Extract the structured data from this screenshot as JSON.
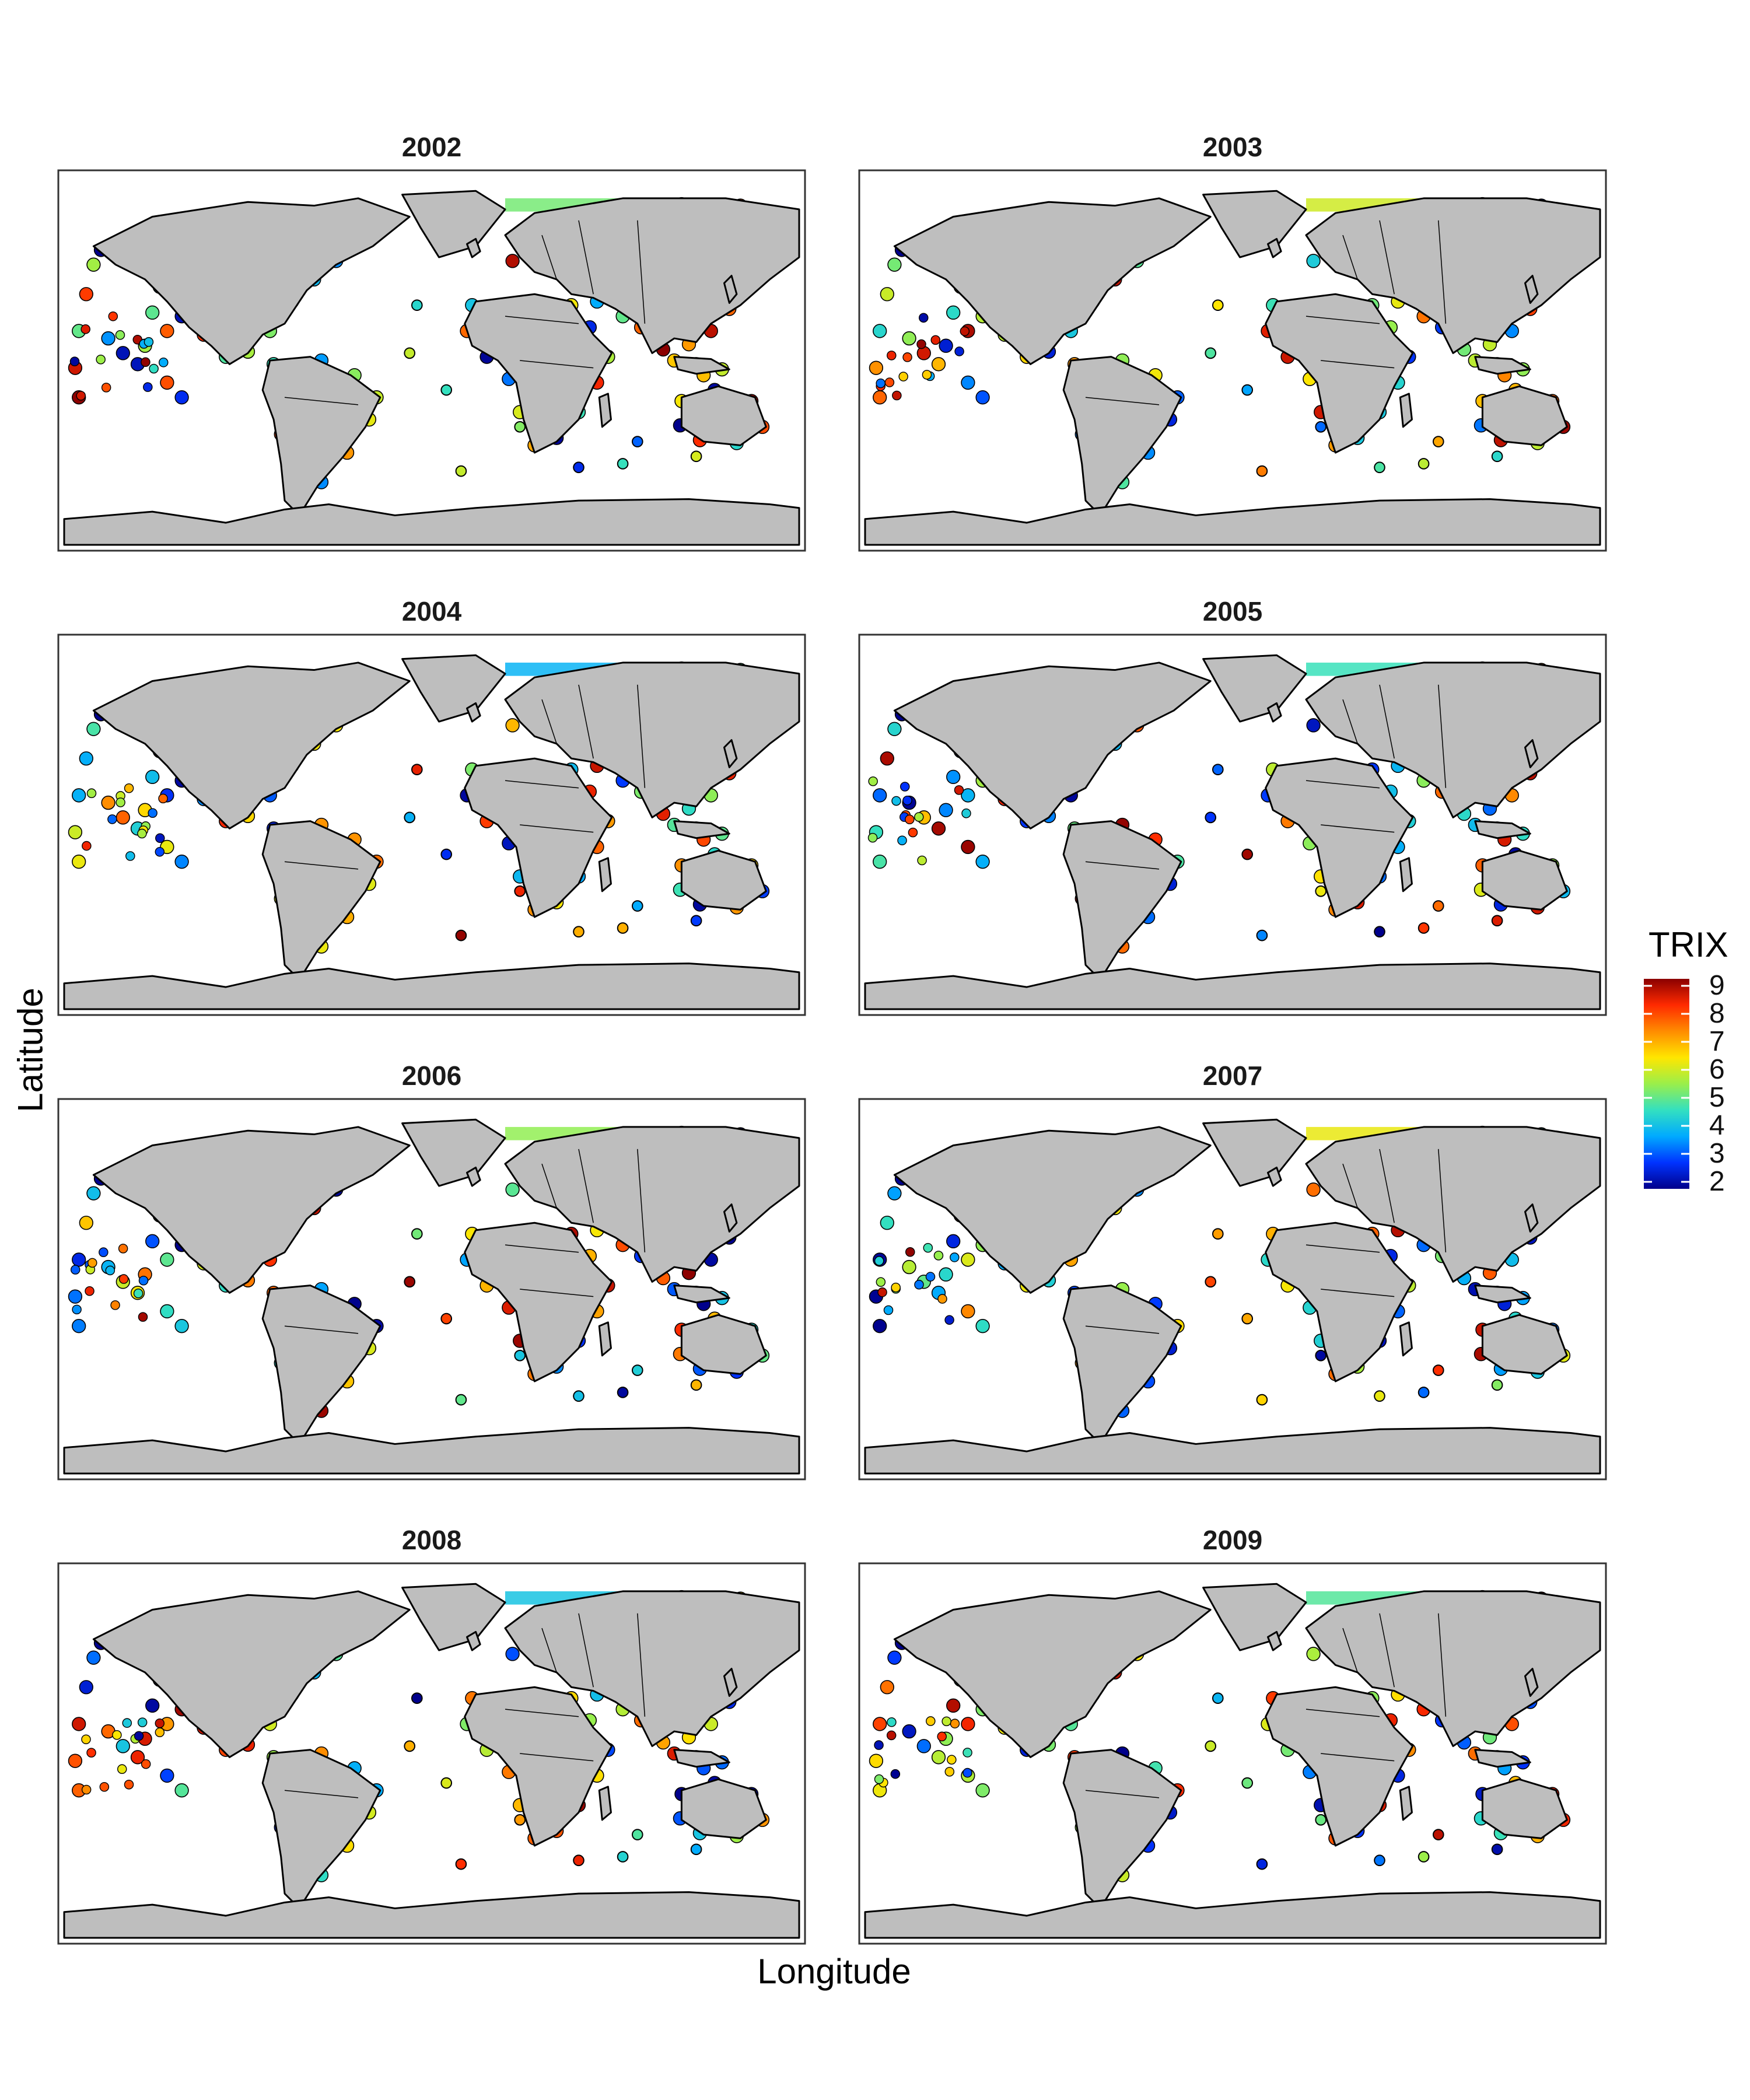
{
  "figure": {
    "xlabel": "Longitude",
    "ylabel": "Latitude"
  },
  "legend": {
    "title": "TRIX",
    "ticks": [
      "9",
      "8",
      "7",
      "6",
      "5",
      "4",
      "3",
      "2"
    ],
    "range": [
      2,
      9
    ],
    "colors": [
      "#00008b",
      "#0033ff",
      "#00aaff",
      "#33e0c0",
      "#9aef4a",
      "#ffe600",
      "#ff8c00",
      "#ff2a00",
      "#8b0000"
    ]
  },
  "chart_data": {
    "type": "heatmap",
    "description_type": "faceted world maps of coastal TRIX index",
    "facets": [
      "2002",
      "2003",
      "2004",
      "2005",
      "2006",
      "2007",
      "2008",
      "2009"
    ],
    "xlabel": "Longitude",
    "ylabel": "Latitude",
    "color_scale": {
      "name": "TRIX",
      "min": 2,
      "max": 9,
      "ticks": [
        2,
        3,
        4,
        5,
        6,
        7,
        8,
        9
      ]
    },
    "land_color": "#bebebe"
  },
  "panels": [
    {
      "title": "2002"
    },
    {
      "title": "2003"
    },
    {
      "title": "2004"
    },
    {
      "title": "2005"
    },
    {
      "title": "2006"
    },
    {
      "title": "2007"
    },
    {
      "title": "2008"
    },
    {
      "title": "2009"
    }
  ]
}
